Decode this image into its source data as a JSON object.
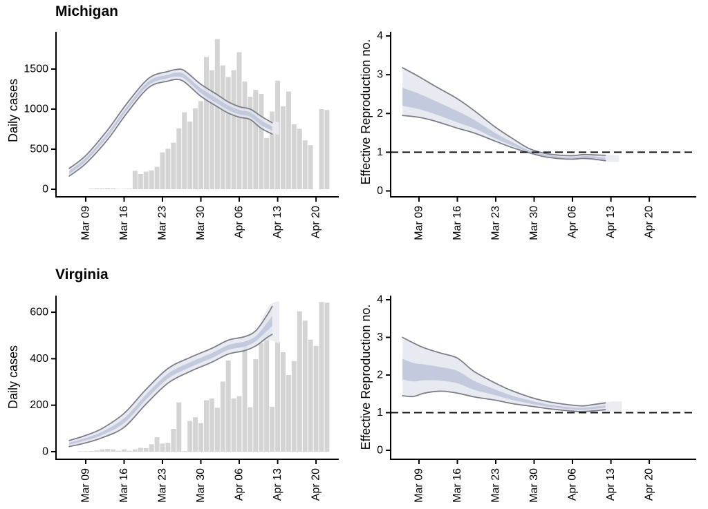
{
  "colors": {
    "background": "#ffffff",
    "bar_fill": "#d4d4d4",
    "band_outer": "#e3e5ee",
    "band_inner": "#bdc4d9",
    "band_outline": "#7c7e88",
    "forecast_band": "#e9ebf2",
    "reference_dash": "#111111",
    "axis": "#000000",
    "text": "#000000"
  },
  "x_axis": {
    "tick_labels": [
      "Mar 09",
      "Mar 16",
      "Mar 23",
      "Mar 30",
      "Apr 06",
      "Apr 13",
      "Apr 20"
    ],
    "tick_days": [
      3,
      10,
      17,
      24,
      31,
      38,
      45
    ],
    "day_unit": "days since Mar 06"
  },
  "chart_data": [
    {
      "id": "michigan_daily_cases",
      "type": "bar",
      "title": "Michigan",
      "ylabel": "Daily cases",
      "xlabel": "",
      "y_ticks": [
        0,
        500,
        1000,
        1500
      ],
      "ylim": [
        0,
        1965
      ],
      "x_tick_labels": [
        "Mar 09",
        "Mar 16",
        "Mar 23",
        "Mar 30",
        "Apr 06",
        "Apr 13",
        "Apr 20"
      ],
      "grid": false,
      "legend": false,
      "bars": {
        "start_day": 4,
        "values": [
          8,
          12,
          10,
          15,
          12,
          4,
          6,
          8,
          230,
          190,
          220,
          235,
          280,
          460,
          505,
          580,
          760,
          960,
          845,
          1010,
          1100,
          1650,
          1485,
          1875,
          1545,
          1400,
          1485,
          1710,
          1345,
          1155,
          1240,
          1190,
          640,
          970,
          1355,
          1035,
          1220,
          810,
          755,
          610,
          550,
          0,
          1000,
          990
        ]
      },
      "ribbon": {
        "days": [
          0,
          3,
          7,
          10.5,
          14.5,
          18,
          19.5,
          21,
          24,
          27,
          29,
          31,
          33,
          35,
          37
        ],
        "outer_lower": [
          165,
          320,
          620,
          950,
          1270,
          1350,
          1370,
          1340,
          1160,
          1030,
          950,
          900,
          870,
          760,
          690
        ],
        "outer_upper": [
          260,
          420,
          740,
          1070,
          1385,
          1470,
          1495,
          1480,
          1310,
          1180,
          1090,
          1030,
          1000,
          910,
          830
        ],
        "inner_lower": [
          190,
          350,
          655,
          985,
          1300,
          1385,
          1405,
          1380,
          1200,
          1070,
          990,
          935,
          905,
          800,
          730
        ],
        "inner_upper": [
          230,
          390,
          700,
          1030,
          1350,
          1430,
          1455,
          1435,
          1260,
          1130,
          1045,
          990,
          960,
          860,
          785
        ]
      },
      "forecast_tail": {
        "days": [
          36.5,
          38.3
        ],
        "lower": [
          700,
          680
        ],
        "upper": [
          845,
          840
        ]
      }
    },
    {
      "id": "michigan_effective_reproduction_no",
      "type": "area",
      "title": "",
      "ylabel": "Effective Reproduction no.",
      "xlabel": "",
      "y_ticks": [
        0,
        1,
        2,
        3,
        4
      ],
      "ylim": [
        0,
        4.1
      ],
      "x_tick_labels": [
        "Mar 09",
        "Mar 16",
        "Mar 23",
        "Mar 30",
        "Apr 06",
        "Apr 13",
        "Apr 20"
      ],
      "grid": false,
      "legend": false,
      "reference_line": 1,
      "ribbon": {
        "days": [
          0,
          3,
          6,
          10,
          13,
          17,
          20,
          23,
          26,
          29,
          31,
          33,
          35,
          37
        ],
        "outer_lower": [
          1.95,
          1.9,
          1.8,
          1.62,
          1.5,
          1.28,
          1.12,
          0.99,
          0.88,
          0.83,
          0.82,
          0.84,
          0.82,
          0.78
        ],
        "outer_upper": [
          3.18,
          2.95,
          2.7,
          2.38,
          2.08,
          1.64,
          1.36,
          1.1,
          0.97,
          0.92,
          0.91,
          0.94,
          0.93,
          0.92
        ],
        "inner_lower": [
          2.2,
          2.11,
          1.98,
          1.77,
          1.62,
          1.35,
          1.17,
          1.01,
          0.9,
          0.85,
          0.84,
          0.86,
          0.84,
          0.81
        ],
        "inner_upper": [
          2.66,
          2.51,
          2.32,
          2.06,
          1.84,
          1.49,
          1.26,
          1.05,
          0.94,
          0.88,
          0.87,
          0.9,
          0.89,
          0.86
        ]
      },
      "forecast_tail": {
        "days": [
          33,
          35.5,
          38,
          39.5
        ],
        "lower": [
          0.81,
          0.78,
          0.75,
          0.75
        ],
        "upper": [
          0.94,
          0.93,
          0.93,
          0.92
        ]
      }
    },
    {
      "id": "virginia_daily_cases",
      "type": "bar",
      "title": "Virginia",
      "ylabel": "Daily cases",
      "xlabel": "",
      "y_ticks": [
        0,
        200,
        400,
        600
      ],
      "ylim": [
        0,
        672
      ],
      "x_tick_labels": [
        "Mar 09",
        "Mar 16",
        "Mar 23",
        "Mar 30",
        "Apr 06",
        "Apr 13",
        "Apr 20"
      ],
      "grid": false,
      "legend": false,
      "bars": {
        "start_day": 2,
        "values": [
          2,
          2,
          3,
          5,
          10,
          12,
          10,
          4,
          10,
          4,
          10,
          17,
          15,
          32,
          62,
          35,
          38,
          98,
          212,
          3,
          132,
          148,
          123,
          221,
          229,
          189,
          302,
          392,
          229,
          239,
          463,
          191,
          398,
          468,
          566,
          193,
          472,
          428,
          330,
          390,
          604,
          564,
          482,
          455,
          644,
          641
        ]
      },
      "ribbon": {
        "days": [
          0,
          3,
          6,
          10,
          14,
          18,
          22,
          26,
          29,
          32,
          34,
          36,
          37
        ],
        "outer_lower": [
          22,
          38,
          60,
          105,
          205,
          295,
          345,
          385,
          420,
          435,
          455,
          490,
          505
        ],
        "outer_upper": [
          48,
          70,
          100,
          165,
          268,
          358,
          405,
          445,
          480,
          495,
          520,
          585,
          625
        ],
        "inner_lower": [
          30,
          48,
          72,
          123,
          224,
          314,
          363,
          403,
          438,
          453,
          475,
          519,
          541
        ],
        "inner_upper": [
          39,
          59,
          86,
          144,
          246,
          336,
          384,
          424,
          459,
          474,
          497,
          552,
          583
        ]
      },
      "forecast_tail": {
        "days": [
          35,
          36.5,
          38.3
        ],
        "lower": [
          470,
          480,
          465
        ],
        "upper": [
          560,
          630,
          648
        ]
      }
    },
    {
      "id": "virginia_effective_reproduction_no",
      "type": "area",
      "title": "",
      "ylabel": "Effective Reproduction no.",
      "xlabel": "",
      "y_ticks": [
        0,
        1,
        2,
        3,
        4
      ],
      "ylim": [
        0,
        4.1
      ],
      "x_tick_labels": [
        "Mar 09",
        "Mar 16",
        "Mar 23",
        "Mar 30",
        "Apr 06",
        "Apr 13",
        "Apr 20"
      ],
      "grid": false,
      "legend": false,
      "reference_line": 1,
      "ribbon": {
        "days": [
          0,
          2,
          4,
          7,
          10,
          13,
          17,
          20,
          24,
          27,
          31,
          33,
          35,
          37
        ],
        "outer_lower": [
          1.45,
          1.43,
          1.52,
          1.57,
          1.52,
          1.42,
          1.33,
          1.24,
          1.16,
          1.1,
          1.04,
          1.03,
          1.05,
          1.08
        ],
        "outer_upper": [
          3.0,
          2.85,
          2.72,
          2.58,
          2.45,
          2.1,
          1.78,
          1.58,
          1.38,
          1.28,
          1.2,
          1.18,
          1.22,
          1.26
        ],
        "inner_lower": [
          1.88,
          1.83,
          1.86,
          1.85,
          1.78,
          1.61,
          1.46,
          1.34,
          1.22,
          1.15,
          1.08,
          1.07,
          1.1,
          1.13
        ],
        "inner_upper": [
          2.43,
          2.32,
          2.28,
          2.21,
          2.11,
          1.85,
          1.61,
          1.45,
          1.3,
          1.21,
          1.14,
          1.13,
          1.16,
          1.19
        ]
      },
      "forecast_tail": {
        "days": [
          33,
          35.5,
          38,
          40
        ],
        "lower": [
          1.02,
          1.02,
          1.03,
          1.02
        ],
        "upper": [
          1.18,
          1.23,
          1.3,
          1.3
        ]
      }
    }
  ]
}
